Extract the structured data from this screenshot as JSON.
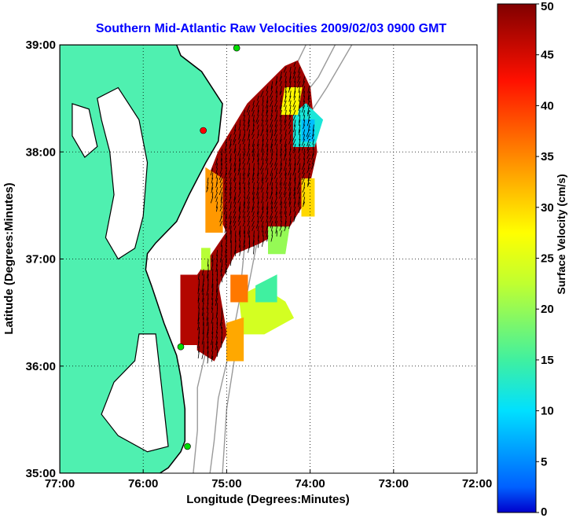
{
  "chart_data": {
    "type": "heatmap",
    "title": "Southern Mid-Atlantic Raw Velocities 2009/02/03 0900 GMT",
    "xlabel": "Longitude (Degrees:Minutes)",
    "ylabel": "Latitude (Degrees:Minutes)",
    "x_ticks": [
      "77:00",
      "76:00",
      "75:00",
      "74:00",
      "73:00",
      "72:00"
    ],
    "y_ticks": [
      "39:00",
      "38:00",
      "37:00",
      "36:00",
      "35:00"
    ],
    "xlim": [
      -77,
      -72
    ],
    "ylim": [
      35,
      39
    ],
    "grid": true,
    "colorbar": {
      "label": "Surface Velocity (cm/s)",
      "range": [
        0,
        50
      ],
      "ticks": [
        "0",
        "5",
        "10",
        "15",
        "20",
        "25",
        "30",
        "35",
        "40",
        "45",
        "50"
      ],
      "colormap": "jet"
    },
    "colors": {
      "title": "#0000ff",
      "land": "#4ff0b0",
      "coast": "#000000",
      "bathymetry": "#9a9a9a",
      "arrows": "#000000",
      "sites": "#00dd00"
    },
    "regions": [
      {
        "poly": [
          [
            -75.35,
            36.15
          ],
          [
            -75.35,
            36.85
          ],
          [
            -75.0,
            37.25
          ],
          [
            -75.25,
            37.7
          ],
          [
            -75.1,
            38.0
          ],
          [
            -74.75,
            38.45
          ],
          [
            -74.3,
            38.8
          ],
          [
            -74.15,
            38.85
          ],
          [
            -74.0,
            38.6
          ],
          [
            -73.92,
            38.0
          ],
          [
            -74.05,
            37.55
          ],
          [
            -74.25,
            37.3
          ],
          [
            -74.6,
            37.15
          ],
          [
            -74.9,
            37.05
          ],
          [
            -75.1,
            36.75
          ],
          [
            -75.0,
            36.3
          ],
          [
            -75.15,
            36.05
          ]
        ],
        "value": 48
      },
      {
        "poly": [
          [
            -75.25,
            37.25
          ],
          [
            -75.05,
            37.25
          ],
          [
            -75.05,
            37.75
          ],
          [
            -75.25,
            37.85
          ]
        ],
        "value": 34
      },
      {
        "poly": [
          [
            -75.55,
            36.2
          ],
          [
            -75.35,
            36.2
          ],
          [
            -75.35,
            36.85
          ],
          [
            -75.55,
            36.85
          ]
        ],
        "value": 47
      },
      {
        "poly": [
          [
            -74.8,
            36.3
          ],
          [
            -74.55,
            36.3
          ],
          [
            -74.2,
            36.45
          ],
          [
            -74.3,
            36.6
          ],
          [
            -74.6,
            36.75
          ],
          [
            -74.85,
            36.65
          ]
        ],
        "value": 24
      },
      {
        "poly": [
          [
            -75.0,
            36.05
          ],
          [
            -74.8,
            36.05
          ],
          [
            -74.8,
            36.45
          ],
          [
            -75.0,
            36.4
          ]
        ],
        "value": 33
      },
      {
        "poly": [
          [
            -74.95,
            36.6
          ],
          [
            -74.75,
            36.6
          ],
          [
            -74.75,
            36.85
          ],
          [
            -74.95,
            36.85
          ]
        ],
        "value": 36
      },
      {
        "poly": [
          [
            -74.65,
            36.6
          ],
          [
            -74.4,
            36.6
          ],
          [
            -74.4,
            36.85
          ],
          [
            -74.65,
            36.75
          ]
        ],
        "value": 15
      },
      {
        "poly": [
          [
            -74.5,
            37.05
          ],
          [
            -74.3,
            37.05
          ],
          [
            -74.25,
            37.3
          ],
          [
            -74.5,
            37.3
          ]
        ],
        "value": 20
      },
      {
        "poly": [
          [
            -74.1,
            37.4
          ],
          [
            -73.95,
            37.4
          ],
          [
            -73.95,
            37.75
          ],
          [
            -74.1,
            37.75
          ]
        ],
        "value": 30
      },
      {
        "poly": [
          [
            -74.2,
            38.05
          ],
          [
            -73.95,
            38.05
          ],
          [
            -73.85,
            38.3
          ],
          [
            -74.05,
            38.45
          ],
          [
            -74.2,
            38.35
          ]
        ],
        "value": 12
      },
      {
        "poly": [
          [
            -74.1,
            38.1
          ],
          [
            -73.95,
            38.1
          ],
          [
            -73.95,
            38.3
          ],
          [
            -74.1,
            38.3
          ]
        ],
        "value": 8
      },
      {
        "poly": [
          [
            -74.35,
            38.35
          ],
          [
            -74.15,
            38.35
          ],
          [
            -74.1,
            38.6
          ],
          [
            -74.3,
            38.6
          ]
        ],
        "value": 28
      },
      {
        "poly": [
          [
            -75.3,
            36.9
          ],
          [
            -75.2,
            36.9
          ],
          [
            -75.2,
            37.1
          ],
          [
            -75.3,
            37.1
          ]
        ],
        "value": 22
      }
    ],
    "sites": [
      {
        "lon": -74.88,
        "lat": 38.97
      },
      {
        "lon": -75.28,
        "lat": 38.2
      },
      {
        "lon": -75.55,
        "lat": 36.18
      },
      {
        "lon": -75.47,
        "lat": 35.25
      }
    ]
  }
}
